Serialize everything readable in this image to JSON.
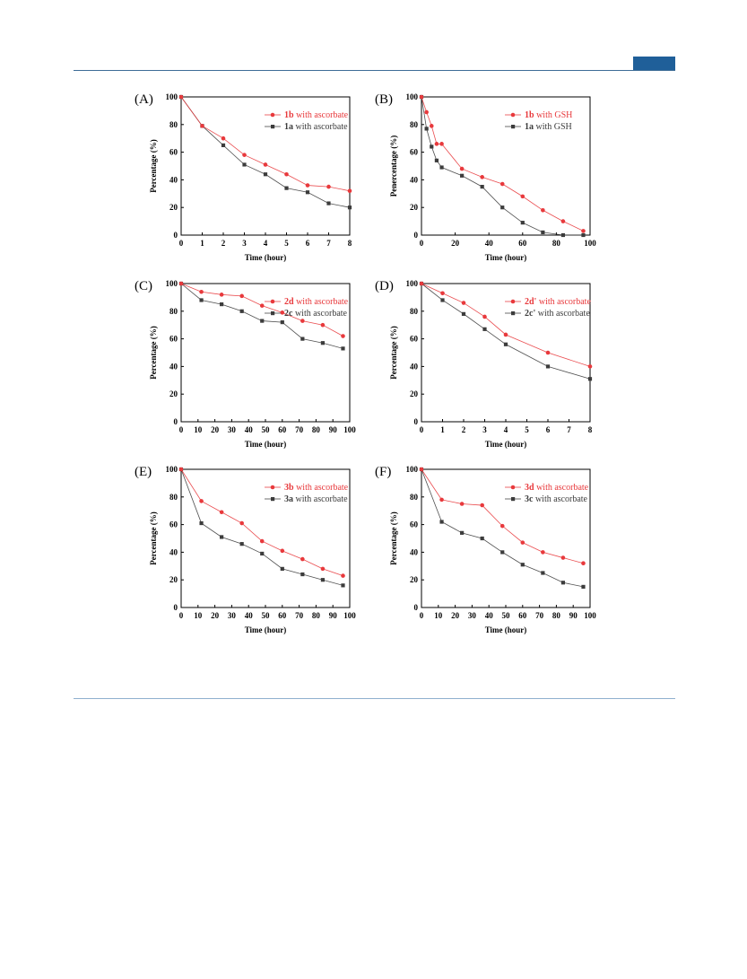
{
  "page": {
    "colors": {
      "header_rule": "#3e6d97",
      "header_block": "#1f5f99",
      "footer_rule": "#8fb0cf"
    }
  },
  "colors": {
    "red": "#e8393c",
    "gray": "#3c3c3c"
  },
  "chart_data": [
    {
      "panel": "(A)",
      "type": "line",
      "xlabel": "Time (hour)",
      "ylabel": "Percentage (%)",
      "xlim": [
        0,
        8
      ],
      "ylim": [
        0,
        100
      ],
      "xticks": [
        0,
        1,
        2,
        3,
        4,
        5,
        6,
        7,
        8
      ],
      "yticks": [
        0,
        20,
        40,
        60,
        80,
        100
      ],
      "legend_position": "top-right",
      "grid": false,
      "series": [
        {
          "bold": "1b",
          "rest": " with ascorbate",
          "color": "#e8393c",
          "marker": "circle",
          "x": [
            0,
            1,
            2,
            3,
            4,
            5,
            6,
            7,
            8
          ],
          "y": [
            100,
            79,
            70,
            58,
            51,
            44,
            36,
            35,
            32
          ]
        },
        {
          "bold": "1a",
          "rest": " with ascorbate",
          "color": "#3c3c3c",
          "marker": "square",
          "x": [
            0,
            1,
            2,
            3,
            4,
            5,
            6,
            7,
            8
          ],
          "y": [
            100,
            79,
            65,
            51,
            44,
            34,
            31,
            23,
            20
          ]
        }
      ]
    },
    {
      "panel": "(B)",
      "type": "line",
      "xlabel": "Time (hour)",
      "ylabel": "Penercentage (%)",
      "xlim": [
        0,
        100
      ],
      "ylim": [
        0,
        100
      ],
      "xticks": [
        0,
        20,
        40,
        60,
        80,
        100
      ],
      "yticks": [
        0,
        20,
        40,
        60,
        80,
        100
      ],
      "legend_position": "top-right",
      "grid": false,
      "series": [
        {
          "bold": "1b",
          "rest": " with GSH",
          "color": "#e8393c",
          "marker": "circle",
          "x": [
            0,
            3,
            6,
            9,
            12,
            24,
            36,
            48,
            60,
            72,
            84,
            96
          ],
          "y": [
            100,
            89,
            79,
            66,
            66,
            48,
            42,
            37,
            28,
            18,
            10,
            3
          ]
        },
        {
          "bold": "1a",
          "rest": " with GSH",
          "color": "#3c3c3c",
          "marker": "square",
          "x": [
            0,
            3,
            6,
            9,
            12,
            24,
            36,
            48,
            60,
            72,
            84,
            96
          ],
          "y": [
            100,
            77,
            64,
            54,
            49,
            43,
            35,
            20,
            9,
            2,
            0,
            0
          ]
        }
      ]
    },
    {
      "panel": "(C)",
      "type": "line",
      "xlabel": "Time (hour)",
      "ylabel": "Percentage (%)",
      "xlim": [
        0,
        100
      ],
      "ylim": [
        0,
        100
      ],
      "xticks": [
        0,
        10,
        20,
        30,
        40,
        50,
        60,
        70,
        80,
        90,
        100
      ],
      "yticks": [
        0,
        20,
        40,
        60,
        80,
        100
      ],
      "legend_position": "top-right",
      "grid": false,
      "series": [
        {
          "bold": "2d",
          "rest": " with ascorbate",
          "color": "#e8393c",
          "marker": "circle",
          "x": [
            0,
            12,
            24,
            36,
            48,
            60,
            72,
            84,
            96
          ],
          "y": [
            100,
            94,
            92,
            91,
            84,
            79,
            73,
            70,
            62
          ]
        },
        {
          "bold": "2c",
          "rest": " with ascorbate",
          "color": "#3c3c3c",
          "marker": "square",
          "x": [
            0,
            12,
            24,
            36,
            48,
            60,
            72,
            84,
            96
          ],
          "y": [
            100,
            88,
            85,
            80,
            73,
            72,
            60,
            57,
            53
          ]
        }
      ]
    },
    {
      "panel": "(D)",
      "type": "line",
      "xlabel": "Time (hour)",
      "ylabel": "Percentage (%)",
      "xlim": [
        0,
        8
      ],
      "ylim": [
        0,
        100
      ],
      "xticks": [
        0,
        1,
        2,
        3,
        4,
        5,
        6,
        7,
        8
      ],
      "yticks": [
        0,
        20,
        40,
        60,
        80,
        100
      ],
      "legend_position": "top-right",
      "grid": false,
      "series": [
        {
          "bold": "2d'",
          "rest": " with ascorbate",
          "color": "#e8393c",
          "marker": "circle",
          "x": [
            0,
            1,
            2,
            3,
            4,
            6,
            8
          ],
          "y": [
            100,
            93,
            86,
            76,
            63,
            50,
            40
          ]
        },
        {
          "bold": "2c'",
          "rest": " with ascorbate",
          "color": "#3c3c3c",
          "marker": "square",
          "x": [
            0,
            1,
            2,
            3,
            4,
            6,
            8
          ],
          "y": [
            100,
            88,
            78,
            67,
            56,
            40,
            31
          ]
        }
      ]
    },
    {
      "panel": "(E)",
      "type": "line",
      "xlabel": "Time (hour)",
      "ylabel": "Percentage (%)",
      "xlim": [
        0,
        100
      ],
      "ylim": [
        0,
        100
      ],
      "xticks": [
        0,
        10,
        20,
        30,
        40,
        50,
        60,
        70,
        80,
        90,
        100
      ],
      "yticks": [
        0,
        20,
        40,
        60,
        80,
        100
      ],
      "legend_position": "top-right",
      "grid": false,
      "series": [
        {
          "bold": "3b",
          "rest": " with ascorbate",
          "color": "#e8393c",
          "marker": "circle",
          "x": [
            0,
            12,
            24,
            36,
            48,
            60,
            72,
            84,
            96
          ],
          "y": [
            100,
            77,
            69,
            61,
            48,
            41,
            35,
            28,
            23
          ]
        },
        {
          "bold": "3a",
          "rest": " with ascorbate",
          "color": "#3c3c3c",
          "marker": "square",
          "x": [
            0,
            12,
            24,
            36,
            48,
            60,
            72,
            84,
            96
          ],
          "y": [
            100,
            61,
            51,
            46,
            39,
            28,
            24,
            20,
            16
          ]
        }
      ]
    },
    {
      "panel": "(F)",
      "type": "line",
      "xlabel": "Time (hour)",
      "ylabel": "Percentage (%)",
      "xlim": [
        0,
        100
      ],
      "ylim": [
        0,
        100
      ],
      "xticks": [
        0,
        10,
        20,
        30,
        40,
        50,
        60,
        70,
        80,
        90,
        100
      ],
      "yticks": [
        0,
        20,
        40,
        60,
        80,
        100
      ],
      "legend_position": "top-right",
      "grid": false,
      "series": [
        {
          "bold": "3d",
          "rest": " with ascorbate",
          "color": "#e8393c",
          "marker": "circle",
          "x": [
            0,
            12,
            24,
            36,
            48,
            60,
            72,
            84,
            96
          ],
          "y": [
            100,
            78,
            75,
            74,
            59,
            47,
            40,
            36,
            32
          ]
        },
        {
          "bold": "3c",
          "rest": " with ascorbate",
          "color": "#3c3c3c",
          "marker": "square",
          "x": [
            0,
            12,
            24,
            36,
            48,
            60,
            72,
            84,
            96
          ],
          "y": [
            100,
            62,
            54,
            50,
            40,
            31,
            25,
            18,
            15
          ]
        }
      ]
    }
  ]
}
